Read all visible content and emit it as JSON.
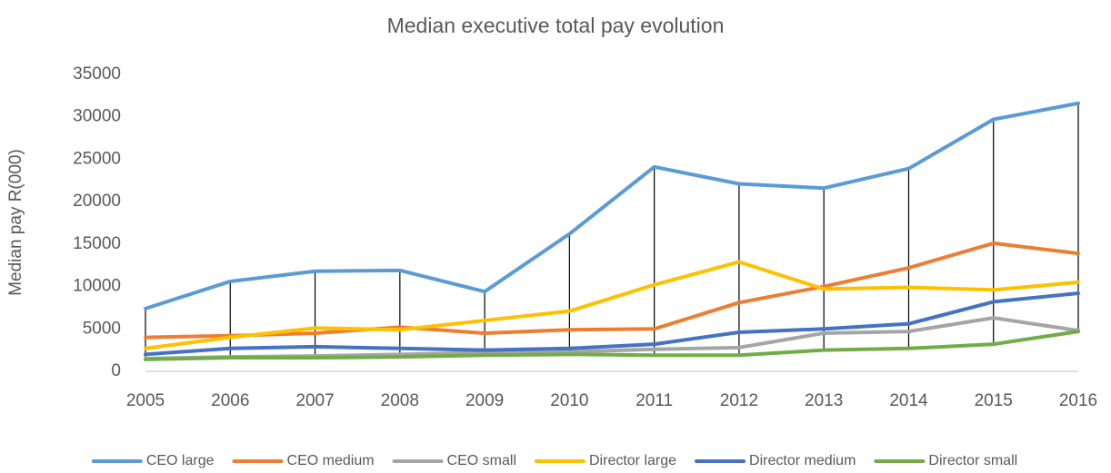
{
  "chart_data": {
    "type": "line",
    "title": "Median executive total pay evolution",
    "y_label": "Median pay R(000)",
    "categories": [
      "2005",
      "2006",
      "2007",
      "2008",
      "2009",
      "2010",
      "2011",
      "2012",
      "2013",
      "2014",
      "2015",
      "2016"
    ],
    "series": [
      {
        "name": "CEO large",
        "color": "#5b9bd5",
        "values": [
          7400,
          10600,
          11800,
          11900,
          9400,
          16200,
          24100,
          22100,
          21600,
          23900,
          29700,
          31600
        ]
      },
      {
        "name": "CEO medium",
        "color": "#ed7d31",
        "values": [
          4000,
          4200,
          4500,
          5200,
          4500,
          4900,
          5000,
          8100,
          10000,
          12200,
          15100,
          13900
        ]
      },
      {
        "name": "CEO small",
        "color": "#a5a5a5",
        "values": [
          1500,
          1700,
          1800,
          2000,
          2200,
          2300,
          2600,
          2800,
          4500,
          4700,
          6300,
          4800
        ]
      },
      {
        "name": "Director large",
        "color": "#ffc000",
        "values": [
          2700,
          4000,
          5100,
          4900,
          6000,
          7100,
          10200,
          12900,
          9700,
          9900,
          9600,
          10500
        ]
      },
      {
        "name": "Director medium",
        "color": "#4472c4",
        "values": [
          2000,
          2700,
          2900,
          2700,
          2500,
          2700,
          3200,
          4600,
          5000,
          5600,
          8200,
          9200
        ]
      },
      {
        "name": "Director small",
        "color": "#70ad47",
        "values": [
          1400,
          1600,
          1600,
          1700,
          1900,
          2000,
          1900,
          1900,
          2500,
          2700,
          3200,
          4700
        ]
      }
    ],
    "ylim": [
      0,
      35000
    ],
    "yticks": [
      0,
      5000,
      10000,
      15000,
      20000,
      25000,
      30000,
      35000
    ],
    "grid": false,
    "high_low_lines": true,
    "legend": "bottom"
  }
}
